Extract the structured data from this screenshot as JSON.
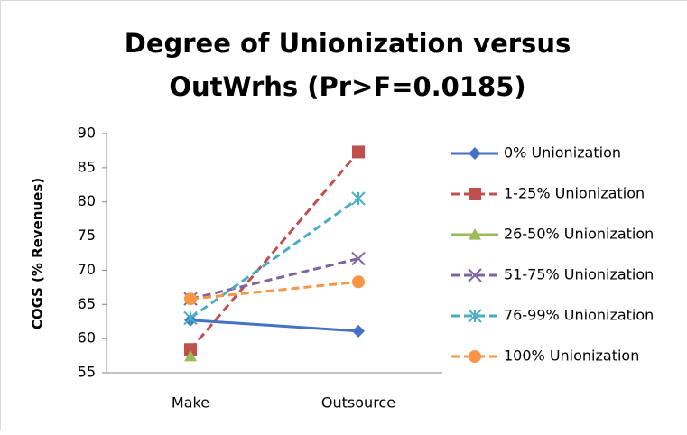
{
  "chart_data": {
    "type": "line",
    "title": [
      "Degree of Unionization versus",
      "OutWrhs (Pr>F=0.0185)"
    ],
    "y_label": "COGS (% Revenues)",
    "categories": [
      "Make",
      "Outsource"
    ],
    "ylim": [
      55,
      90
    ],
    "yticks": [
      55,
      60,
      65,
      70,
      75,
      80,
      85,
      90
    ],
    "legend": "right",
    "series": [
      {
        "name": "0% Unionization",
        "color": "#4472c4",
        "marker": "diamond",
        "dashed": false,
        "values": [
          62.7,
          61.1
        ]
      },
      {
        "name": "1-25% Unionization",
        "color": "#c0504d",
        "marker": "square",
        "dashed": true,
        "values": [
          58.4,
          87.3
        ]
      },
      {
        "name": "26-50% Unionization",
        "color": "#9bbb59",
        "marker": "triangle",
        "dashed": false,
        "values": [
          57.4,
          null
        ]
      },
      {
        "name": "51-75% Unionization",
        "color": "#8064a2",
        "marker": "x",
        "dashed": true,
        "values": [
          65.8,
          71.7
        ]
      },
      {
        "name": "76-99% Unionization",
        "color": "#4bacc6",
        "marker": "star",
        "dashed": true,
        "values": [
          63.0,
          80.5
        ]
      },
      {
        "name": "100% Unionization",
        "color": "#f79646",
        "marker": "circle",
        "dashed": true,
        "values": [
          65.8,
          68.3
        ]
      }
    ]
  }
}
